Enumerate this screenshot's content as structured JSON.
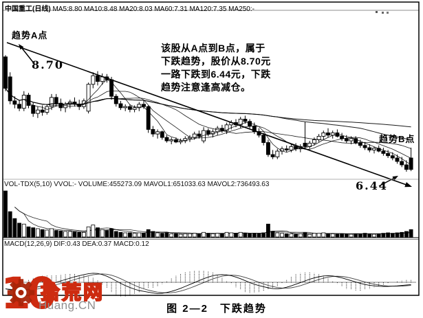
{
  "header": {
    "title": "中国重工(日线)",
    "ma_line": "MA5:8.80 MA10:8.48 MA20:8.03 MA60:7.31 MA120:7.35 MA250:-"
  },
  "annotations": {
    "point_a_label": "趋势A点",
    "price_a": "8.70",
    "point_b_label": "趋势B点",
    "price_b": "6.44",
    "note_lines": [
      "该股从A点到B点，属于",
      "下跌趋势，股价从8.70元",
      "一路下跌到6.44元，下跌",
      "趋势注意逢高减仓。"
    ]
  },
  "panes": {
    "volume_label": "VOL-TDX(5,10) VVOL:-  VOLUME:455273.09 MAVOL1:651033.63 MAVOL2:736493.63",
    "macd_label": "MACD(12,26,9) DIF:0.43 DEA:0.37 MACD:0.12"
  },
  "caption": "图 2—2　下跌趋势",
  "watermark": {
    "number": "10",
    "site_name": "拾荒网",
    "site_domain": "Huang.CN",
    "color": "#cd2b10"
  },
  "chart_data": {
    "type": "candlestick",
    "title": "中国重工(日线)",
    "panes": [
      "price",
      "volume",
      "macd"
    ],
    "trend": "down",
    "price_ref": {
      "point_a_high": 8.7,
      "point_b_low": 6.44
    },
    "ma_periods": [
      5,
      10,
      20,
      60,
      120
    ],
    "candles_ohlc": [
      [
        8.45,
        8.48,
        7.85,
        7.9
      ],
      [
        8.1,
        8.18,
        7.62,
        7.68
      ],
      [
        7.68,
        7.76,
        7.55,
        7.62
      ],
      [
        7.62,
        7.7,
        7.5,
        7.55
      ],
      [
        7.55,
        7.85,
        7.5,
        7.78
      ],
      [
        7.78,
        7.82,
        7.55,
        7.6
      ],
      [
        7.6,
        7.65,
        7.4,
        7.46
      ],
      [
        7.46,
        7.58,
        7.38,
        7.52
      ],
      [
        7.52,
        7.6,
        7.42,
        7.48
      ],
      [
        7.48,
        7.62,
        7.44,
        7.58
      ],
      [
        7.58,
        7.8,
        7.52,
        7.74
      ],
      [
        7.74,
        7.8,
        7.58,
        7.64
      ],
      [
        7.64,
        7.72,
        7.5,
        7.56
      ],
      [
        7.56,
        7.66,
        7.48,
        7.62
      ],
      [
        7.62,
        7.7,
        7.55,
        7.66
      ],
      [
        7.66,
        7.74,
        7.58,
        7.62
      ],
      [
        7.62,
        7.7,
        7.52,
        7.58
      ],
      [
        7.58,
        7.72,
        7.54,
        7.68
      ],
      [
        7.5,
        8.0,
        7.46,
        7.97
      ],
      [
        7.97,
        8.18,
        7.9,
        8.12
      ],
      [
        8.12,
        8.2,
        7.95,
        8.02
      ],
      [
        8.02,
        8.16,
        7.96,
        8.1
      ],
      [
        8.1,
        8.15,
        8.0,
        8.05
      ],
      [
        8.05,
        8.1,
        7.7,
        7.76
      ],
      [
        7.76,
        7.8,
        7.58,
        7.63
      ],
      [
        7.63,
        7.68,
        7.52,
        7.56
      ],
      [
        7.56,
        7.62,
        7.5,
        7.58
      ],
      [
        7.58,
        7.62,
        7.48,
        7.53
      ],
      [
        7.53,
        7.6,
        7.48,
        7.56
      ],
      [
        7.56,
        7.66,
        7.5,
        7.62
      ],
      [
        7.62,
        7.68,
        7.54,
        7.58
      ],
      [
        7.58,
        7.6,
        7.12,
        7.18
      ],
      [
        7.18,
        7.24,
        7.05,
        7.1
      ],
      [
        7.1,
        7.18,
        7.02,
        7.14
      ],
      [
        7.14,
        7.16,
        7.0,
        7.04
      ],
      [
        7.04,
        7.08,
        6.95,
        6.98
      ],
      [
        6.98,
        7.04,
        6.92,
        7.0
      ],
      [
        7.0,
        7.04,
        6.94,
        6.96
      ],
      [
        6.96,
        7.02,
        6.92,
        6.98
      ],
      [
        6.98,
        7.06,
        6.94,
        7.02
      ],
      [
        7.02,
        7.08,
        6.96,
        7.04
      ],
      [
        7.04,
        7.14,
        7.0,
        7.1
      ],
      [
        7.1,
        7.16,
        7.02,
        7.06
      ],
      [
        6.98,
        7.22,
        6.94,
        7.16
      ],
      [
        7.16,
        7.2,
        7.06,
        7.1
      ],
      [
        7.1,
        7.18,
        7.04,
        7.14
      ],
      [
        7.14,
        7.24,
        7.08,
        7.2
      ],
      [
        7.2,
        7.26,
        7.12,
        7.16
      ],
      [
        7.16,
        7.3,
        7.1,
        7.26
      ],
      [
        7.26,
        7.34,
        7.18,
        7.3
      ],
      [
        7.3,
        7.36,
        7.22,
        7.26
      ],
      [
        7.26,
        7.4,
        7.2,
        7.36
      ],
      [
        7.36,
        7.42,
        7.28,
        7.32
      ],
      [
        7.32,
        7.36,
        7.2,
        7.24
      ],
      [
        7.24,
        7.3,
        7.1,
        7.14
      ],
      [
        7.14,
        7.2,
        7.04,
        7.08
      ],
      [
        7.08,
        7.12,
        6.9,
        6.95
      ],
      [
        6.95,
        7.0,
        6.7,
        6.74
      ],
      [
        6.74,
        6.82,
        6.66,
        6.7
      ],
      [
        6.7,
        6.84,
        6.66,
        6.8
      ],
      [
        6.8,
        6.88,
        6.74,
        6.84
      ],
      [
        6.84,
        6.9,
        6.78,
        6.82
      ],
      [
        6.82,
        6.92,
        6.78,
        6.88
      ],
      [
        6.88,
        6.94,
        6.8,
        6.84
      ],
      [
        6.84,
        6.92,
        6.78,
        6.88
      ],
      [
        6.94,
        7.31,
        6.84,
        6.88
      ],
      [
        6.88,
        6.98,
        6.84,
        6.94
      ],
      [
        6.94,
        7.04,
        6.9,
        7.0
      ],
      [
        7.0,
        7.1,
        6.96,
        7.06
      ],
      [
        7.06,
        7.16,
        7.0,
        7.12
      ],
      [
        7.12,
        7.2,
        7.04,
        7.08
      ],
      [
        7.08,
        7.16,
        7.02,
        7.12
      ],
      [
        7.12,
        7.18,
        7.04,
        7.06
      ],
      [
        7.06,
        7.12,
        6.98,
        7.02
      ],
      [
        7.02,
        7.08,
        6.94,
        6.98
      ],
      [
        6.98,
        7.06,
        6.92,
        7.02
      ],
      [
        7.02,
        7.06,
        6.92,
        6.95
      ],
      [
        6.95,
        7.0,
        6.86,
        6.9
      ],
      [
        6.9,
        6.96,
        6.82,
        6.86
      ],
      [
        6.86,
        6.92,
        6.78,
        6.82
      ],
      [
        6.82,
        6.88,
        6.76,
        6.85
      ],
      [
        6.85,
        6.9,
        6.78,
        6.8
      ],
      [
        6.8,
        6.86,
        6.72,
        6.76
      ],
      [
        6.76,
        6.82,
        6.68,
        6.72
      ],
      [
        6.72,
        6.78,
        6.64,
        6.68
      ],
      [
        6.68,
        6.74,
        6.58,
        6.62
      ],
      [
        6.62,
        6.7,
        6.52,
        6.56
      ],
      [
        6.56,
        6.64,
        6.44,
        6.48
      ],
      [
        6.68,
        6.86,
        6.45,
        6.48
      ]
    ],
    "volume_rel": [
      1.0,
      0.55,
      0.4,
      0.3,
      0.28,
      0.22,
      0.2,
      0.18,
      0.16,
      0.15,
      0.18,
      0.14,
      0.13,
      0.12,
      0.12,
      0.11,
      0.1,
      0.1,
      0.22,
      0.26,
      0.2,
      0.16,
      0.14,
      0.18,
      0.12,
      0.1,
      0.09,
      0.09,
      0.08,
      0.09,
      0.08,
      0.16,
      0.12,
      0.09,
      0.08,
      0.09,
      0.07,
      0.07,
      0.06,
      0.07,
      0.07,
      0.08,
      0.07,
      0.1,
      0.08,
      0.07,
      0.08,
      0.07,
      0.1,
      0.09,
      0.08,
      0.1,
      0.08,
      0.07,
      0.08,
      0.07,
      0.09,
      0.28,
      0.12,
      0.09,
      0.08,
      0.07,
      0.07,
      0.06,
      0.07,
      0.09,
      0.06,
      0.08,
      0.08,
      0.09,
      0.07,
      0.07,
      0.06,
      0.07,
      0.06,
      0.06,
      0.07,
      0.07,
      0.08,
      0.07,
      0.06,
      0.07,
      0.08,
      0.09,
      0.08,
      0.09,
      0.1,
      0.12,
      0.16
    ],
    "macd_dif": [
      -0.24,
      -0.27,
      -0.29,
      -0.3,
      -0.28,
      -0.25,
      -0.21,
      -0.17,
      -0.13,
      -0.09,
      -0.05,
      0.0,
      0.05,
      0.1,
      0.15,
      0.2,
      0.24,
      0.28,
      0.31,
      0.33,
      0.32,
      0.28,
      0.22,
      0.14,
      0.05,
      -0.04,
      -0.12,
      -0.19,
      -0.25,
      -0.3,
      -0.33,
      -0.36,
      -0.39,
      -0.41,
      -0.4,
      -0.37,
      -0.33,
      -0.28,
      -0.22,
      -0.15,
      -0.08,
      -0.01,
      0.06,
      0.13,
      0.19,
      0.24,
      0.27,
      0.28,
      0.27,
      0.24,
      0.19,
      0.13,
      0.06,
      -0.01,
      -0.07,
      -0.12,
      -0.16,
      -0.2,
      -0.23,
      -0.24,
      -0.22,
      -0.18,
      -0.13,
      -0.07,
      -0.01,
      0.05,
      0.11,
      0.16,
      0.2,
      0.23,
      0.24,
      0.23,
      0.2,
      0.16,
      0.11,
      0.06,
      0.01,
      -0.04,
      -0.08,
      -0.11,
      -0.13,
      -0.145,
      -0.15,
      -0.15,
      -0.14,
      -0.13,
      -0.115,
      -0.1,
      -0.085
    ]
  }
}
